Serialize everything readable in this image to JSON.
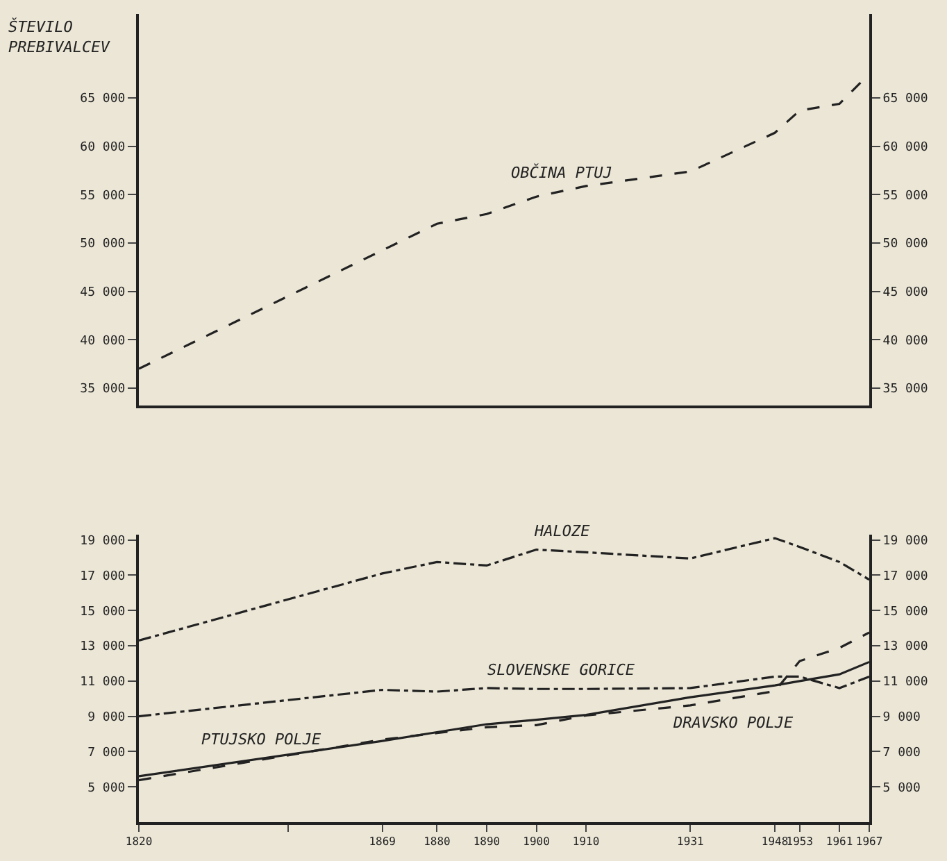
{
  "chart_data": [
    {
      "type": "line",
      "ylabel": "ŠTEVILO\nPREBIVALCEV",
      "x": [
        1820,
        1880,
        1890,
        1900,
        1910,
        1931,
        1948,
        1953,
        1961,
        1967
      ],
      "series": [
        {
          "name": "OBČINA PTUJ",
          "color": "#222222",
          "line_style": "dashed",
          "values": [
            37000,
            52000,
            53000,
            54800,
            55900,
            57400,
            61400,
            63700,
            64400,
            67500
          ]
        }
      ],
      "xlim": [
        1820,
        1967
      ],
      "ylim": [
        33200,
        73700
      ],
      "y2lim": [
        33200,
        73700
      ],
      "yticks": [
        {
          "value": 35000,
          "label": "35 000"
        },
        {
          "value": 40000,
          "label": "40 000"
        },
        {
          "value": 45000,
          "label": "45 000"
        },
        {
          "value": 50000,
          "label": "50 000"
        },
        {
          "value": 55000,
          "label": "55 000"
        },
        {
          "value": 60000,
          "label": "60 000"
        },
        {
          "value": 65000,
          "label": "65 000"
        }
      ],
      "y2ticks": [
        {
          "value": 35000,
          "label": "35 000"
        },
        {
          "value": 40000,
          "label": "40 000"
        },
        {
          "value": 45000,
          "label": "45 000"
        },
        {
          "value": 50000,
          "label": "50 000"
        },
        {
          "value": 55000,
          "label": "55 000"
        },
        {
          "value": 60000,
          "label": "60 000"
        },
        {
          "value": 65000,
          "label": "65 000"
        }
      ],
      "tick_labels": "y",
      "grid": false,
      "legend": false,
      "marker": "none"
    },
    {
      "type": "line",
      "x": [
        1820,
        1869,
        1880,
        1890,
        1900,
        1910,
        1931,
        1948,
        1953,
        1961,
        1967
      ],
      "series": [
        {
          "name": "HALOZE",
          "color": "#222222",
          "line_style": "dashdot",
          "values": [
            13300,
            17100,
            17750,
            17550,
            18450,
            18300,
            17950,
            19100,
            18600,
            17750,
            16750
          ]
        },
        {
          "name": "SLOVENSKE GORICE",
          "color": "#222222",
          "line_style": "dashdot",
          "values": [
            9000,
            10500,
            10400,
            10600,
            10550,
            10550,
            10600,
            11250,
            11250,
            10600,
            11250
          ]
        },
        {
          "name": "PTUJSKO POLJE",
          "color": "#222222",
          "line_style": "solid",
          "values": [
            5600,
            7600,
            8100,
            8550,
            8800,
            9080,
            10080,
            10750,
            11000,
            11380,
            12080
          ]
        },
        {
          "name": "DRAVSKO POLJE",
          "color": "#222222",
          "line_style": "dashed",
          "values": [
            5380,
            7680,
            8050,
            8380,
            8500,
            9050,
            9620,
            10430,
            12130,
            12880,
            13750
          ]
        }
      ],
      "xlim": [
        1820,
        1967
      ],
      "ylim": [
        3000,
        19300
      ],
      "y2lim": [
        3000,
        19300
      ],
      "xticks": [
        1820,
        {
          "value": 1850,
          "label": null
        },
        1869,
        1880,
        1890,
        1900,
        1910,
        1931,
        1948,
        1953,
        1961,
        1967
      ],
      "yticks": [
        {
          "value": 5000,
          "label": "5 000"
        },
        {
          "value": 7000,
          "label": "7 000"
        },
        {
          "value": 9000,
          "label": "9 000"
        },
        {
          "value": 11000,
          "label": "11 000"
        },
        {
          "value": 13000,
          "label": "13 000"
        },
        {
          "value": 15000,
          "label": "15 000"
        },
        {
          "value": 17000,
          "label": "17 000"
        },
        {
          "value": 19000,
          "label": "19 000"
        }
      ],
      "y2ticks": [
        {
          "value": 5000,
          "label": "5 000"
        },
        {
          "value": 7000,
          "label": "7 000"
        },
        {
          "value": 9000,
          "label": "9 000"
        },
        {
          "value": 11000,
          "label": "11 000"
        },
        {
          "value": 13000,
          "label": "13 000"
        },
        {
          "value": 15000,
          "label": "15 000"
        },
        {
          "value": 17000,
          "label": "17 000"
        },
        {
          "value": 19000,
          "label": "19 000"
        }
      ],
      "grid": false,
      "legend": false,
      "marker": "none"
    }
  ]
}
